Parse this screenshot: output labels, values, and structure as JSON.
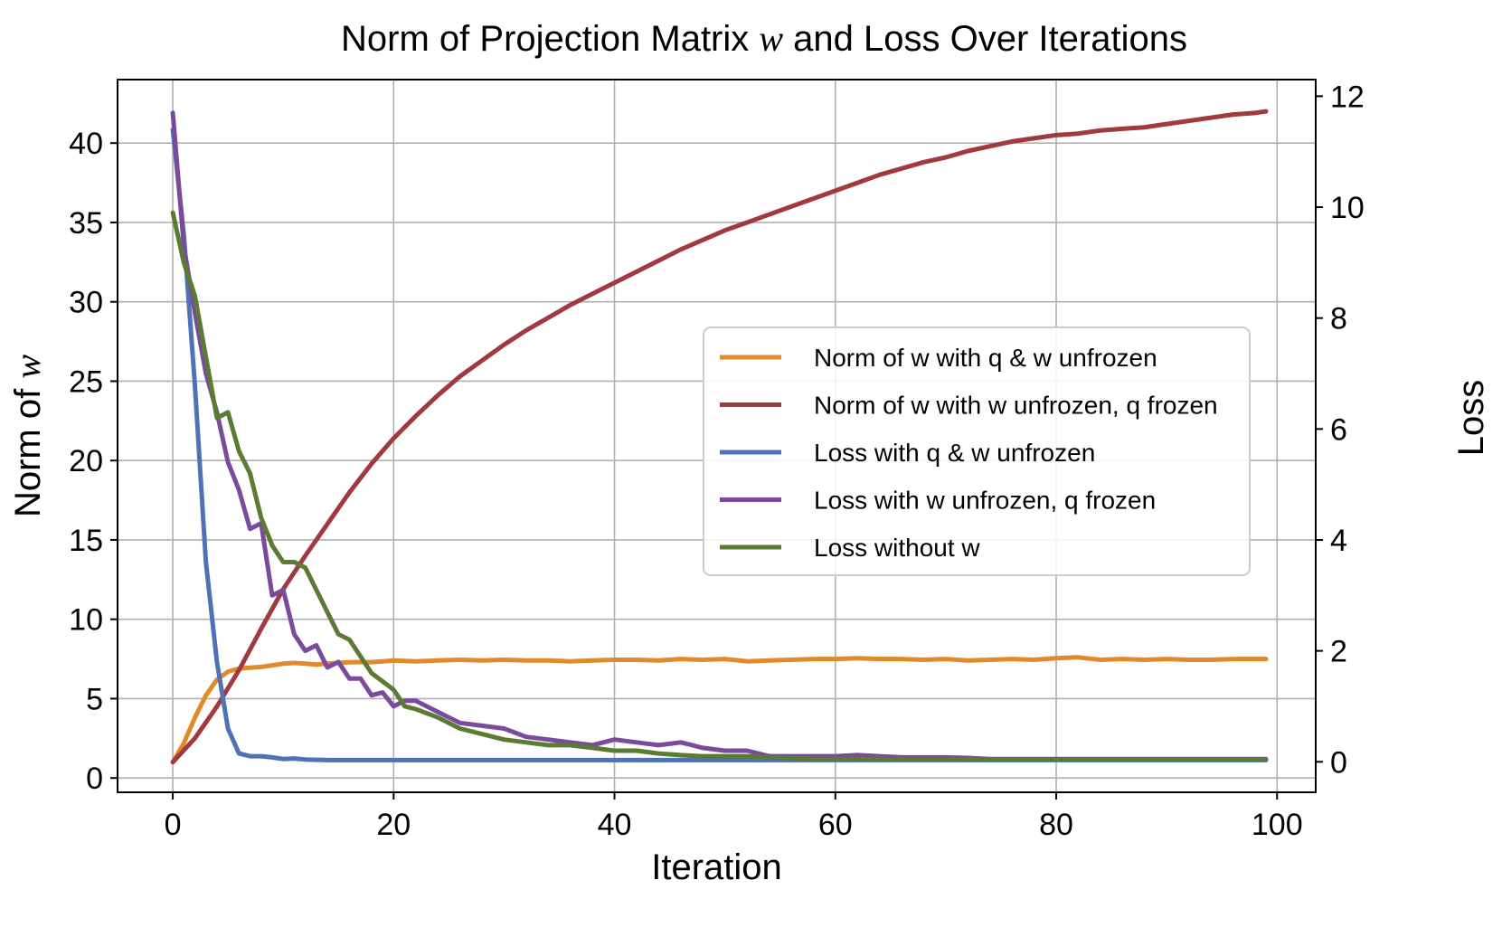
{
  "chart_data": {
    "type": "line",
    "title_prefix": "Norm of Projection Matrix ",
    "title_symbol": "w",
    "title_suffix": " and Loss Over Iterations",
    "xlabel": "Iteration",
    "ylabel_left_prefix": "Norm of ",
    "ylabel_left_symbol": "w",
    "ylabel_right": "Loss",
    "xlim": [
      -5,
      103.5
    ],
    "ylim_left": [
      -0.9,
      44
    ],
    "ylim_right": [
      -0.55,
      12.3
    ],
    "x_ticks": [
      0,
      20,
      40,
      60,
      80,
      100
    ],
    "y_left_ticks": [
      0,
      5,
      10,
      15,
      20,
      25,
      30,
      35,
      40
    ],
    "y_right_ticks": [
      0,
      2,
      4,
      6,
      8,
      10,
      12
    ],
    "grid": true,
    "legend_position": "center-right",
    "series": [
      {
        "name": "Norm of w with q & w unfrozen",
        "axis": "left",
        "color": "#E08A2C",
        "x": [
          0,
          1,
          2,
          3,
          4,
          5,
          6,
          7,
          8,
          9,
          10,
          11,
          12,
          13,
          14,
          15,
          16,
          17,
          18,
          19,
          20,
          22,
          24,
          26,
          28,
          30,
          32,
          34,
          36,
          38,
          40,
          42,
          44,
          46,
          48,
          50,
          52,
          54,
          56,
          58,
          60,
          62,
          64,
          66,
          68,
          70,
          72,
          74,
          76,
          78,
          80,
          82,
          84,
          86,
          88,
          90,
          92,
          94,
          96,
          98,
          99
        ],
        "values": [
          1.0,
          2.2,
          3.8,
          5.2,
          6.2,
          6.7,
          6.9,
          6.95,
          7.0,
          7.1,
          7.2,
          7.25,
          7.2,
          7.15,
          7.2,
          7.25,
          7.3,
          7.3,
          7.3,
          7.35,
          7.4,
          7.35,
          7.4,
          7.45,
          7.4,
          7.45,
          7.4,
          7.4,
          7.35,
          7.4,
          7.45,
          7.45,
          7.4,
          7.5,
          7.45,
          7.5,
          7.35,
          7.4,
          7.45,
          7.5,
          7.5,
          7.55,
          7.5,
          7.5,
          7.45,
          7.5,
          7.4,
          7.45,
          7.5,
          7.45,
          7.55,
          7.6,
          7.45,
          7.5,
          7.45,
          7.5,
          7.45,
          7.45,
          7.5,
          7.5,
          7.5
        ]
      },
      {
        "name": "Norm of w with w unfrozen, q frozen",
        "axis": "left",
        "color": "#A03A3F",
        "x": [
          0,
          2,
          4,
          6,
          8,
          10,
          12,
          14,
          16,
          18,
          20,
          22,
          24,
          26,
          28,
          30,
          32,
          34,
          36,
          38,
          40,
          42,
          44,
          46,
          48,
          50,
          52,
          54,
          56,
          58,
          60,
          62,
          64,
          66,
          68,
          70,
          72,
          74,
          76,
          78,
          80,
          82,
          84,
          86,
          88,
          90,
          92,
          94,
          96,
          98,
          99
        ],
        "values": [
          1.0,
          2.5,
          4.5,
          6.8,
          9.4,
          11.9,
          14.0,
          16.0,
          18.0,
          19.8,
          21.4,
          22.8,
          24.1,
          25.3,
          26.3,
          27.3,
          28.2,
          29.0,
          29.8,
          30.5,
          31.2,
          31.9,
          32.6,
          33.3,
          33.9,
          34.5,
          35.0,
          35.5,
          36.0,
          36.5,
          37.0,
          37.5,
          38.0,
          38.4,
          38.8,
          39.1,
          39.5,
          39.8,
          40.1,
          40.3,
          40.5,
          40.6,
          40.8,
          40.9,
          41.0,
          41.2,
          41.4,
          41.6,
          41.8,
          41.9,
          42.0
        ]
      },
      {
        "name": "Loss with q & w unfrozen",
        "axis": "right",
        "color": "#4E72B5",
        "x": [
          0,
          1,
          2,
          3,
          4,
          5,
          6,
          7,
          8,
          9,
          10,
          11,
          12,
          14,
          16,
          18,
          20,
          25,
          30,
          35,
          40,
          45,
          50,
          55,
          60,
          65,
          70,
          75,
          80,
          85,
          90,
          95,
          99
        ],
        "values": [
          11.4,
          9.5,
          6.8,
          3.6,
          1.8,
          0.6,
          0.15,
          0.1,
          0.1,
          0.08,
          0.05,
          0.06,
          0.04,
          0.03,
          0.03,
          0.03,
          0.03,
          0.03,
          0.03,
          0.03,
          0.03,
          0.03,
          0.03,
          0.03,
          0.03,
          0.03,
          0.03,
          0.03,
          0.03,
          0.03,
          0.03,
          0.03,
          0.03
        ]
      },
      {
        "name": "Loss with w unfrozen, q frozen",
        "axis": "right",
        "color": "#7A4B9C",
        "x": [
          0,
          1,
          2,
          3,
          4,
          5,
          6,
          7,
          8,
          9,
          10,
          11,
          12,
          13,
          14,
          15,
          16,
          17,
          18,
          19,
          20,
          21,
          22,
          24,
          26,
          28,
          30,
          32,
          34,
          36,
          38,
          40,
          42,
          44,
          46,
          48,
          50,
          52,
          54,
          56,
          58,
          60,
          62,
          64,
          66,
          68,
          70,
          72,
          74,
          76,
          78,
          80,
          84,
          88,
          92,
          96,
          99
        ],
        "values": [
          11.7,
          9.3,
          8.1,
          7.0,
          6.3,
          5.4,
          4.9,
          4.2,
          4.3,
          3.0,
          3.1,
          2.3,
          2.0,
          2.1,
          1.7,
          1.8,
          1.5,
          1.5,
          1.2,
          1.25,
          1.0,
          1.1,
          1.1,
          0.9,
          0.7,
          0.65,
          0.6,
          0.45,
          0.4,
          0.35,
          0.3,
          0.4,
          0.35,
          0.3,
          0.35,
          0.25,
          0.2,
          0.2,
          0.1,
          0.1,
          0.1,
          0.1,
          0.12,
          0.1,
          0.08,
          0.08,
          0.08,
          0.07,
          0.05,
          0.05,
          0.05,
          0.05,
          0.05,
          0.05,
          0.05,
          0.05,
          0.05
        ]
      },
      {
        "name": "Loss without w",
        "axis": "right",
        "color": "#5B7A34",
        "x": [
          0,
          1,
          2,
          3,
          4,
          5,
          6,
          7,
          8,
          9,
          10,
          11,
          12,
          13,
          14,
          15,
          16,
          17,
          18,
          19,
          20,
          21,
          22,
          24,
          26,
          28,
          30,
          32,
          34,
          36,
          38,
          40,
          42,
          44,
          46,
          48,
          50,
          52,
          54,
          56,
          58,
          60,
          62,
          64,
          66,
          68,
          70,
          72,
          74,
          76,
          78,
          80,
          84,
          88,
          92,
          96,
          99
        ],
        "values": [
          9.9,
          9.0,
          8.4,
          7.3,
          6.2,
          6.3,
          5.6,
          5.2,
          4.4,
          3.9,
          3.6,
          3.6,
          3.5,
          3.1,
          2.7,
          2.3,
          2.2,
          1.9,
          1.6,
          1.45,
          1.3,
          1.0,
          0.95,
          0.8,
          0.6,
          0.5,
          0.4,
          0.35,
          0.3,
          0.3,
          0.25,
          0.2,
          0.2,
          0.15,
          0.12,
          0.1,
          0.1,
          0.1,
          0.08,
          0.07,
          0.05,
          0.05,
          0.05,
          0.05,
          0.05,
          0.05,
          0.05,
          0.04,
          0.04,
          0.04,
          0.04,
          0.04,
          0.04,
          0.04,
          0.04,
          0.04,
          0.04
        ]
      }
    ]
  }
}
